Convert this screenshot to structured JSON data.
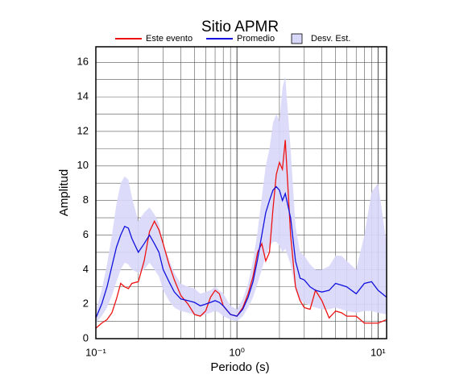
{
  "chart_data": {
    "type": "line",
    "title": "Sitio APMR",
    "x_label": "Periodo (s)",
    "y_label": "Amplitud",
    "log_x": true,
    "grid": true,
    "xlim": [
      0.1,
      11.5
    ],
    "xticks": [
      {
        "value": 0.1,
        "label": "10⁻¹"
      },
      {
        "value": 1,
        "label": "10⁰"
      },
      {
        "value": 10,
        "label": "10¹"
      }
    ],
    "ylim": [
      0,
      16.9
    ],
    "yticks": [
      0,
      2,
      4,
      6,
      8,
      10,
      12,
      14,
      16
    ],
    "x": [
      0.1,
      0.11,
      0.12,
      0.13,
      0.14,
      0.15,
      0.16,
      0.17,
      0.18,
      0.2,
      0.22,
      0.24,
      0.26,
      0.28,
      0.3,
      0.33,
      0.36,
      0.4,
      0.45,
      0.5,
      0.55,
      0.6,
      0.65,
      0.7,
      0.75,
      0.8,
      0.9,
      1.0,
      1.1,
      1.2,
      1.3,
      1.4,
      1.5,
      1.6,
      1.7,
      1.8,
      1.9,
      2.0,
      2.1,
      2.2,
      2.4,
      2.6,
      2.8,
      3.0,
      3.3,
      3.6,
      4.0,
      4.5,
      5,
      5.5,
      6,
      7,
      8,
      9,
      10,
      11.5
    ],
    "band": {
      "name": "Desv. Est.",
      "color": "#d8d8fa",
      "lower": [
        0.9,
        1.3,
        1.8,
        2.5,
        3.3,
        4.0,
        4.4,
        4.3,
        4.0,
        3.8,
        4.0,
        4.4,
        4.0,
        3.6,
        2.8,
        2.2,
        1.8,
        1.6,
        1.5,
        1.4,
        1.3,
        1.4,
        1.5,
        1.6,
        1.5,
        1.3,
        1.1,
        1.0,
        1.3,
        1.8,
        2.4,
        3.2,
        4.0,
        4.8,
        5.3,
        5.6,
        5.6,
        5.4,
        5.0,
        5.2,
        4.3,
        2.8,
        2.2,
        2.1,
        1.9,
        1.8,
        1.7,
        1.7,
        1.8,
        1.7,
        1.6,
        1.5,
        1.6,
        1.6,
        1.5,
        1.4
      ],
      "upper": [
        1.6,
        2.8,
        4.3,
        6.0,
        7.8,
        9.0,
        9.4,
        9.2,
        8.2,
        6.8,
        7.3,
        7.6,
        7.2,
        6.7,
        5.5,
        4.6,
        3.8,
        3.2,
        3.0,
        2.9,
        2.6,
        2.7,
        2.8,
        3.0,
        2.8,
        2.6,
        1.9,
        1.7,
        2.3,
        3.2,
        4.5,
        6.2,
        8.2,
        10.0,
        11.0,
        12.5,
        13.0,
        12.6,
        14.5,
        15.2,
        11.0,
        6.5,
        5.0,
        4.8,
        4.3,
        4.0,
        4.0,
        4.2,
        4.8,
        4.8,
        4.5,
        4.0,
        6.0,
        8.5,
        9.0,
        5.5
      ]
    },
    "series": [
      {
        "name": "Este evento",
        "color": "#ee1111",
        "values": [
          0.6,
          0.9,
          1.1,
          1.5,
          2.3,
          3.2,
          3.0,
          2.9,
          3.2,
          3.3,
          4.5,
          6.2,
          6.8,
          6.3,
          5.5,
          4.3,
          3.4,
          2.5,
          2.0,
          1.4,
          1.3,
          1.6,
          2.4,
          2.8,
          2.6,
          1.9,
          1.4,
          1.3,
          1.8,
          2.6,
          3.6,
          5.0,
          5.5,
          4.5,
          5.0,
          7.5,
          9.5,
          10.2,
          9.8,
          11.5,
          6.0,
          3.0,
          2.2,
          1.8,
          1.7,
          2.8,
          2.2,
          1.2,
          1.6,
          1.5,
          1.3,
          1.3,
          0.9,
          0.9,
          0.9,
          1.1
        ]
      },
      {
        "name": "Promedio",
        "color": "#1111dd",
        "values": [
          1.2,
          2.0,
          3.0,
          4.2,
          5.3,
          6.0,
          6.5,
          6.4,
          5.8,
          5.0,
          5.5,
          6.0,
          5.5,
          5.0,
          4.0,
          3.3,
          2.7,
          2.3,
          2.2,
          2.1,
          1.9,
          2.0,
          2.1,
          2.2,
          2.1,
          1.9,
          1.4,
          1.3,
          1.7,
          2.4,
          3.3,
          4.6,
          6.0,
          7.3,
          8.0,
          8.6,
          8.8,
          8.6,
          8.0,
          8.4,
          7.0,
          4.5,
          3.5,
          3.4,
          3.0,
          2.8,
          2.7,
          2.8,
          3.2,
          3.1,
          3.0,
          2.6,
          3.2,
          3.3,
          2.8,
          2.4
        ]
      }
    ]
  }
}
